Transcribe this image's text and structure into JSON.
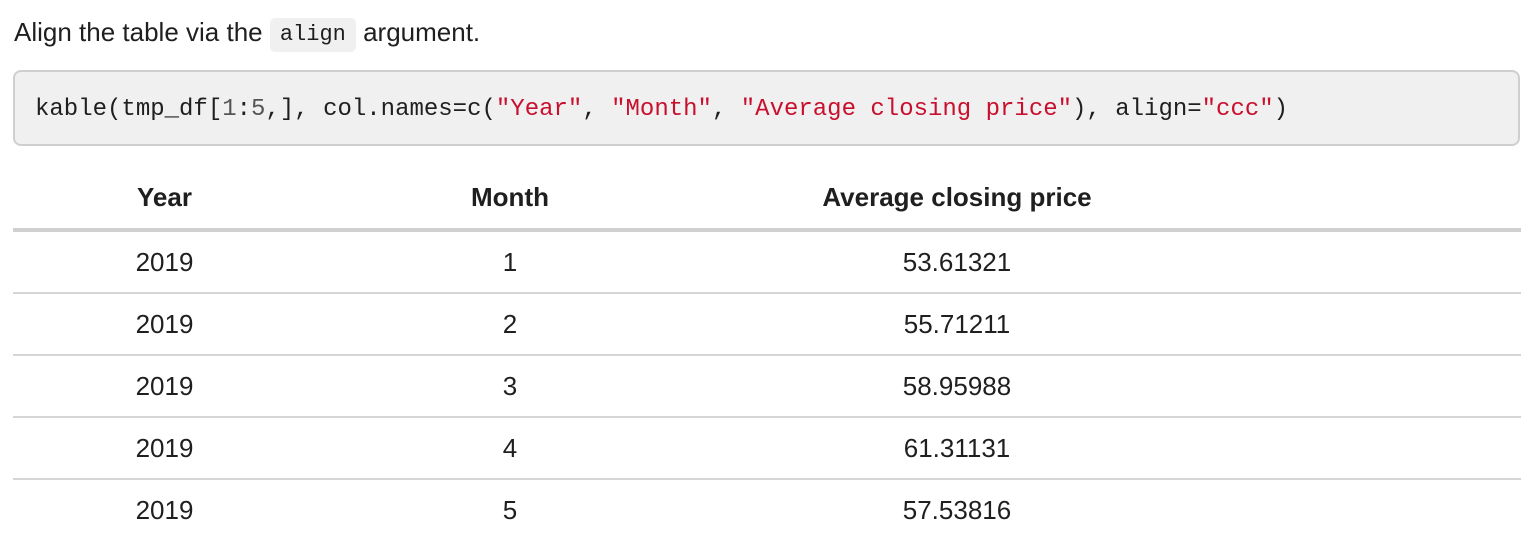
{
  "intro": {
    "before": "Align the table via the ",
    "code": "align",
    "after": " argument."
  },
  "code_block": {
    "p1": "kable(tmp_df[",
    "n1": "1",
    "p2": ":",
    "n2": "5",
    "p3": ",], col.names=c(",
    "s1": "\"Year\"",
    "p4": ", ",
    "s2": "\"Month\"",
    "p5": ", ",
    "s3": "\"Average closing price\"",
    "p6": "), align=",
    "s4": "\"ccc\"",
    "p7": ")"
  },
  "table": {
    "headers": [
      "Year",
      "Month",
      "Average closing price"
    ],
    "rows": [
      [
        "2019",
        "1",
        "53.61321"
      ],
      [
        "2019",
        "2",
        "55.71211"
      ],
      [
        "2019",
        "3",
        "58.95988"
      ],
      [
        "2019",
        "4",
        "61.31131"
      ],
      [
        "2019",
        "5",
        "57.53816"
      ]
    ]
  }
}
